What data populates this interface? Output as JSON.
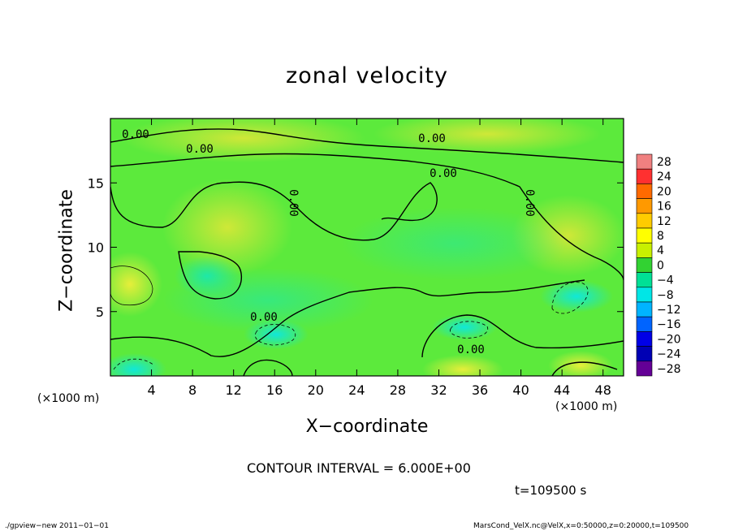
{
  "chart_data": {
    "type": "heatmap",
    "title": "zonal velocity",
    "xlabel": "X−coordinate",
    "ylabel": "Z−coordinate",
    "x_unit": "(×1000 m)",
    "y_unit": "(×1000 m)",
    "xlim": [
      0,
      50
    ],
    "ylim": [
      0,
      20
    ],
    "x_ticks": [
      4,
      8,
      12,
      16,
      20,
      24,
      28,
      32,
      36,
      40,
      44,
      48
    ],
    "y_ticks": [
      5,
      10,
      15
    ],
    "colorbar": {
      "levels": [
        28,
        24,
        20,
        16,
        12,
        8,
        4,
        0,
        -4,
        -8,
        -12,
        -16,
        -20,
        -24,
        -28
      ],
      "level_labels": [
        "28",
        "24",
        "20",
        "16",
        "12",
        "8",
        "4",
        "0",
        "−4",
        "−8",
        "−12",
        "−16",
        "−20",
        "−24",
        "−28"
      ],
      "colors": [
        "#f08080",
        "#ff3030",
        "#ff6a00",
        "#ff9900",
        "#ffcc00",
        "#ffff00",
        "#c8f000",
        "#32d232",
        "#00e096",
        "#00e6e6",
        "#00b4ff",
        "#0064ff",
        "#0000e6",
        "#0000b4",
        "#640096"
      ]
    },
    "contour_labels": [
      "0.00",
      "0.00",
      "0.00",
      "0.00",
      "0.00",
      "0.00",
      "0.00",
      "0.00"
    ],
    "contour_interval": "CONTOUR INTERVAL = 6.000E+00",
    "time": "t=109500 s"
  },
  "footer": {
    "left": "./gpview−new   2011−01−01",
    "right": "MarsCond_VelX.nc@VelX,x=0:50000,z=0:20000,t=109500"
  }
}
